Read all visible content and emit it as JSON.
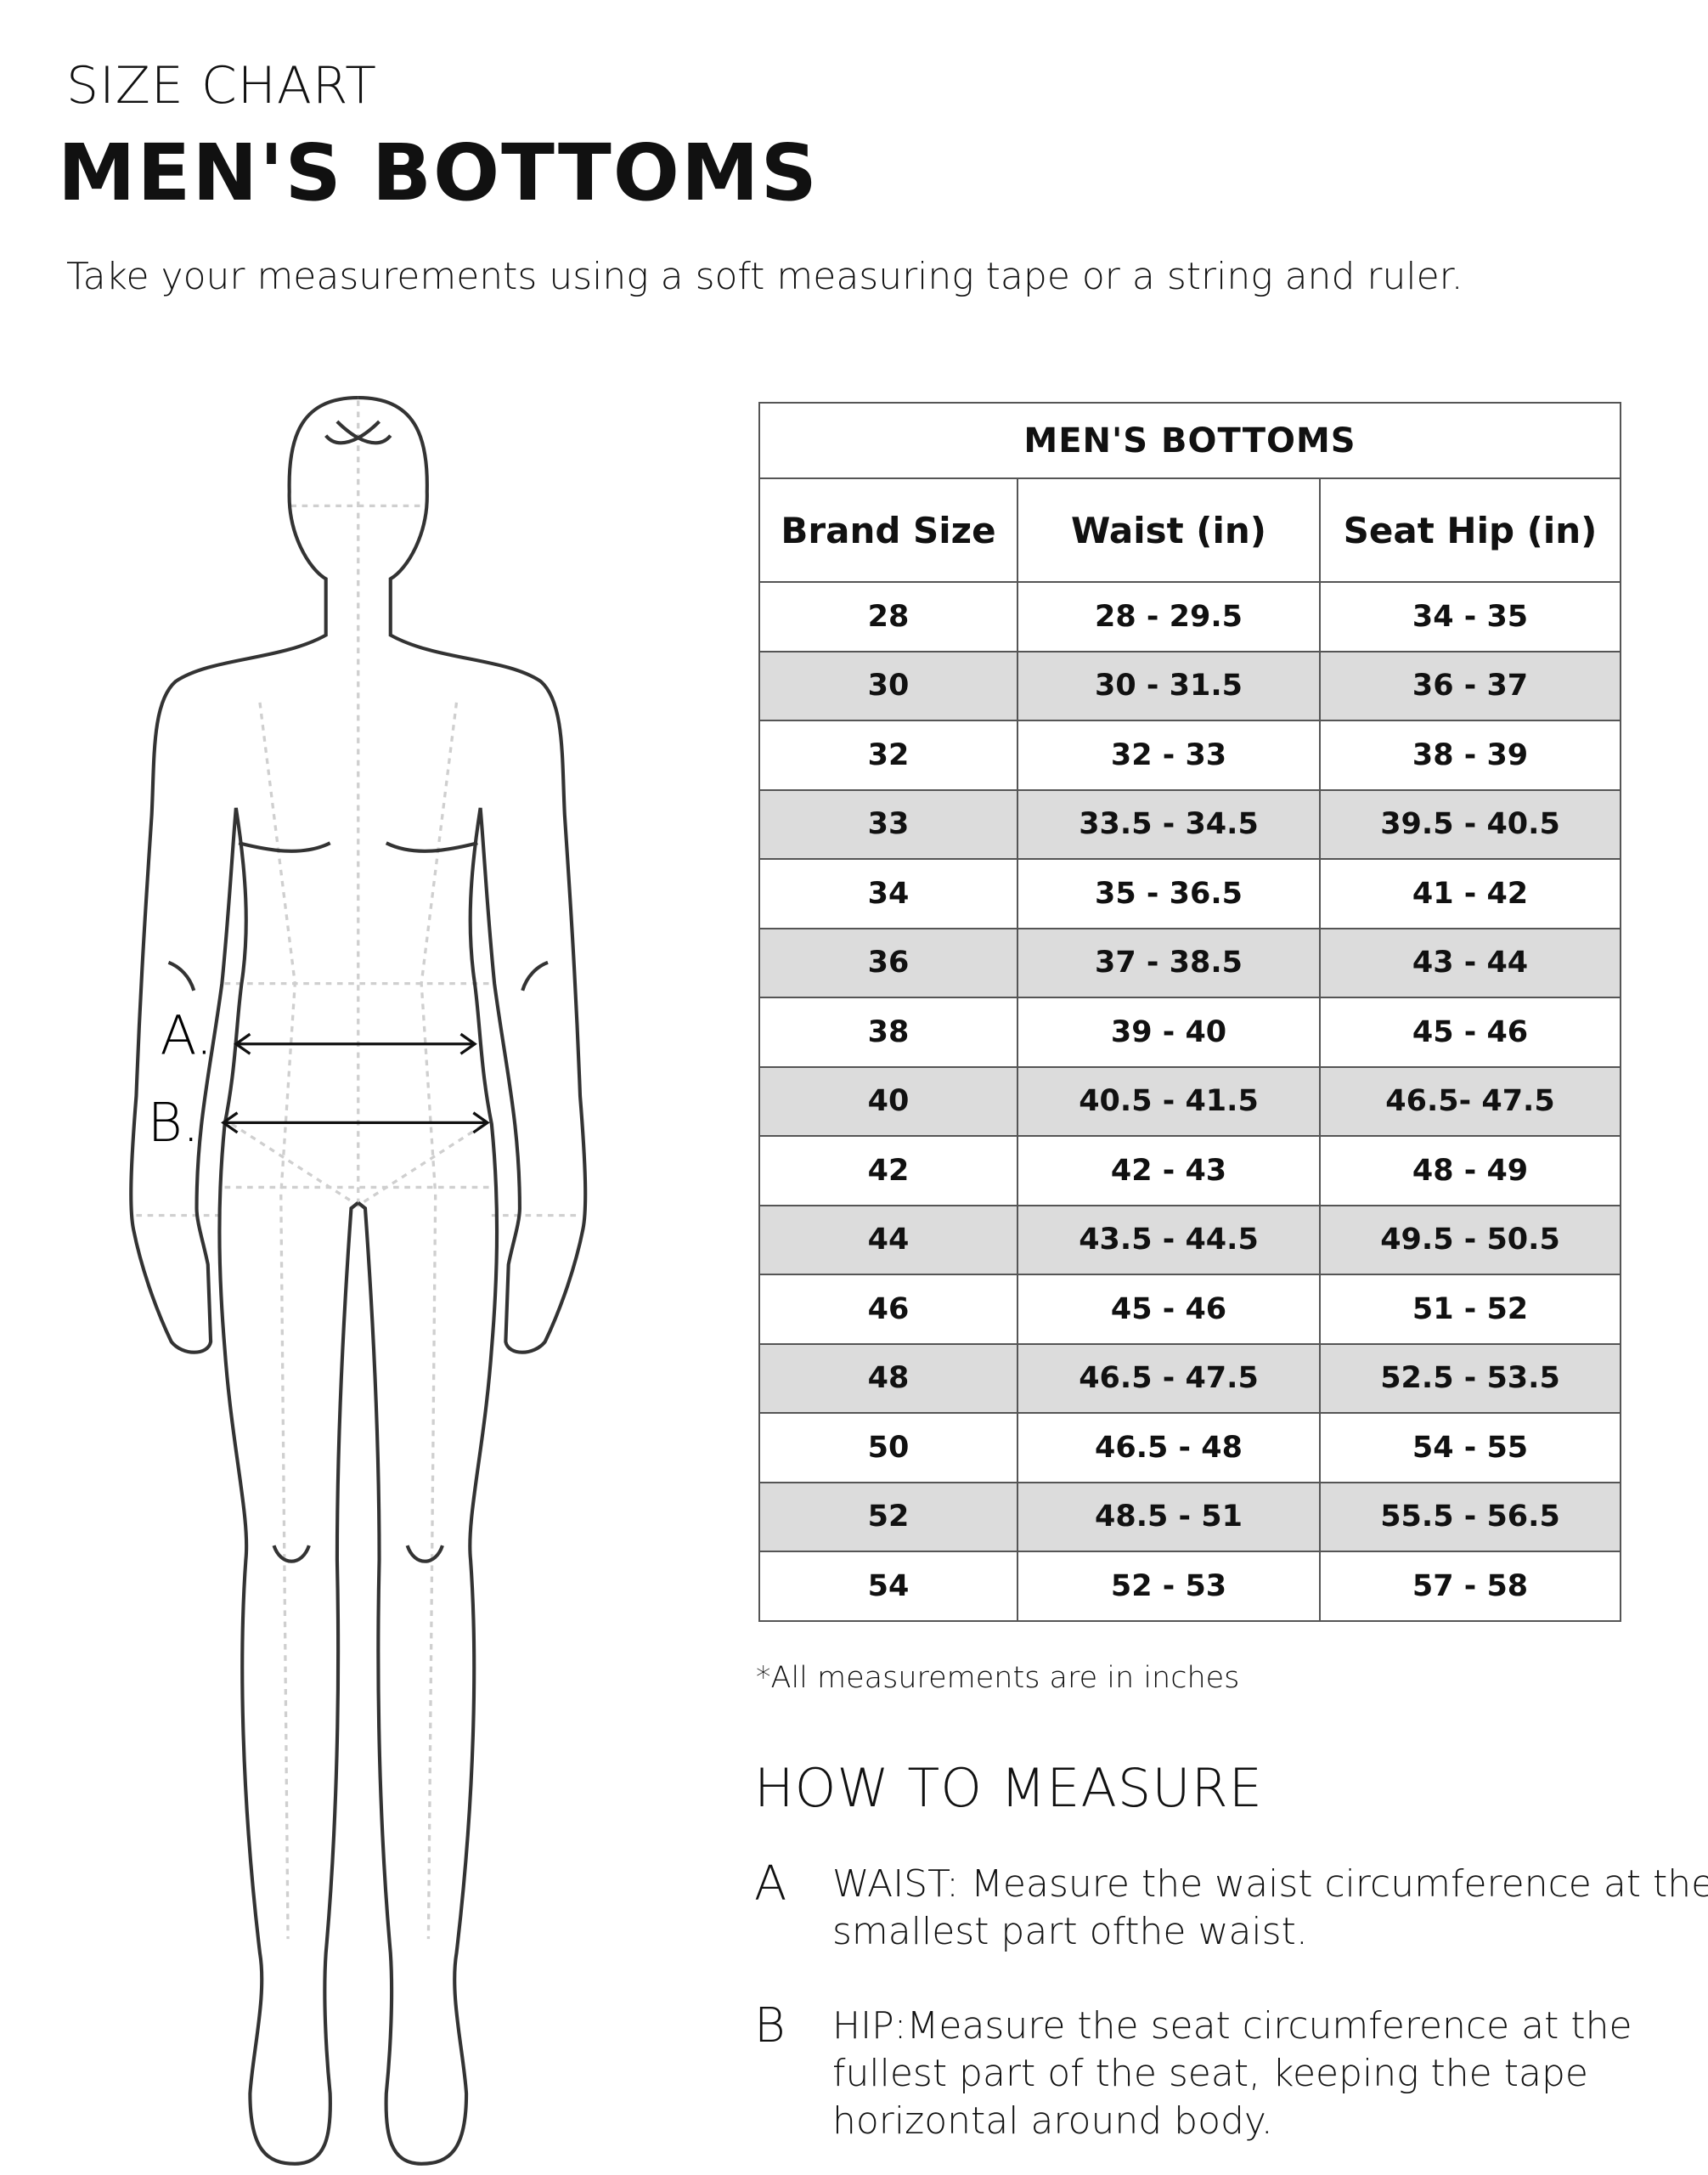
{
  "header": {
    "kicker": "SIZE CHART",
    "title": "MEN'S BOTTOMS",
    "subtitle": "Take your measurements using a soft measuring tape or a string and ruler."
  },
  "figure": {
    "label_a": "A.",
    "label_b": "B."
  },
  "table": {
    "title": "MEN'S BOTTOMS",
    "columns": [
      "Brand Size",
      "Waist (in)",
      "Seat Hip (in)"
    ],
    "rows": [
      [
        "28",
        "28 - 29.5",
        "34 - 35"
      ],
      [
        "30",
        "30 - 31.5",
        "36 - 37"
      ],
      [
        "32",
        "32 - 33",
        "38 - 39"
      ],
      [
        "33",
        "33.5 - 34.5",
        "39.5 - 40.5"
      ],
      [
        "34",
        "35 - 36.5",
        "41 - 42"
      ],
      [
        "36",
        "37 - 38.5",
        "43 - 44"
      ],
      [
        "38",
        "39 - 40",
        "45 - 46"
      ],
      [
        "40",
        "40.5 - 41.5",
        "46.5- 47.5"
      ],
      [
        "42",
        "42 - 43",
        "48 - 49"
      ],
      [
        "44",
        "43.5 - 44.5",
        "49.5 - 50.5"
      ],
      [
        "46",
        "45 - 46",
        "51 - 52"
      ],
      [
        "48",
        "46.5 - 47.5",
        "52.5 - 53.5"
      ],
      [
        "50",
        "46.5 - 48",
        "54 - 55"
      ],
      [
        "52",
        "48.5 - 51",
        "55.5 - 56.5"
      ],
      [
        "54",
        "52 -  53",
        "57 - 58"
      ]
    ],
    "stripe_color": "#dcdcdc"
  },
  "footnote": "*All measurements are in inches",
  "how_to": {
    "title": "HOW TO MEASURE",
    "steps": [
      {
        "letter": "A",
        "text": "WAIST: Measure the waist circumference at the smallest part ofthe waist."
      },
      {
        "letter": "B",
        "text": "HIP:Measure the seat circumference at the fullest part of the seat, keeping the tape horizontal around body."
      }
    ]
  }
}
